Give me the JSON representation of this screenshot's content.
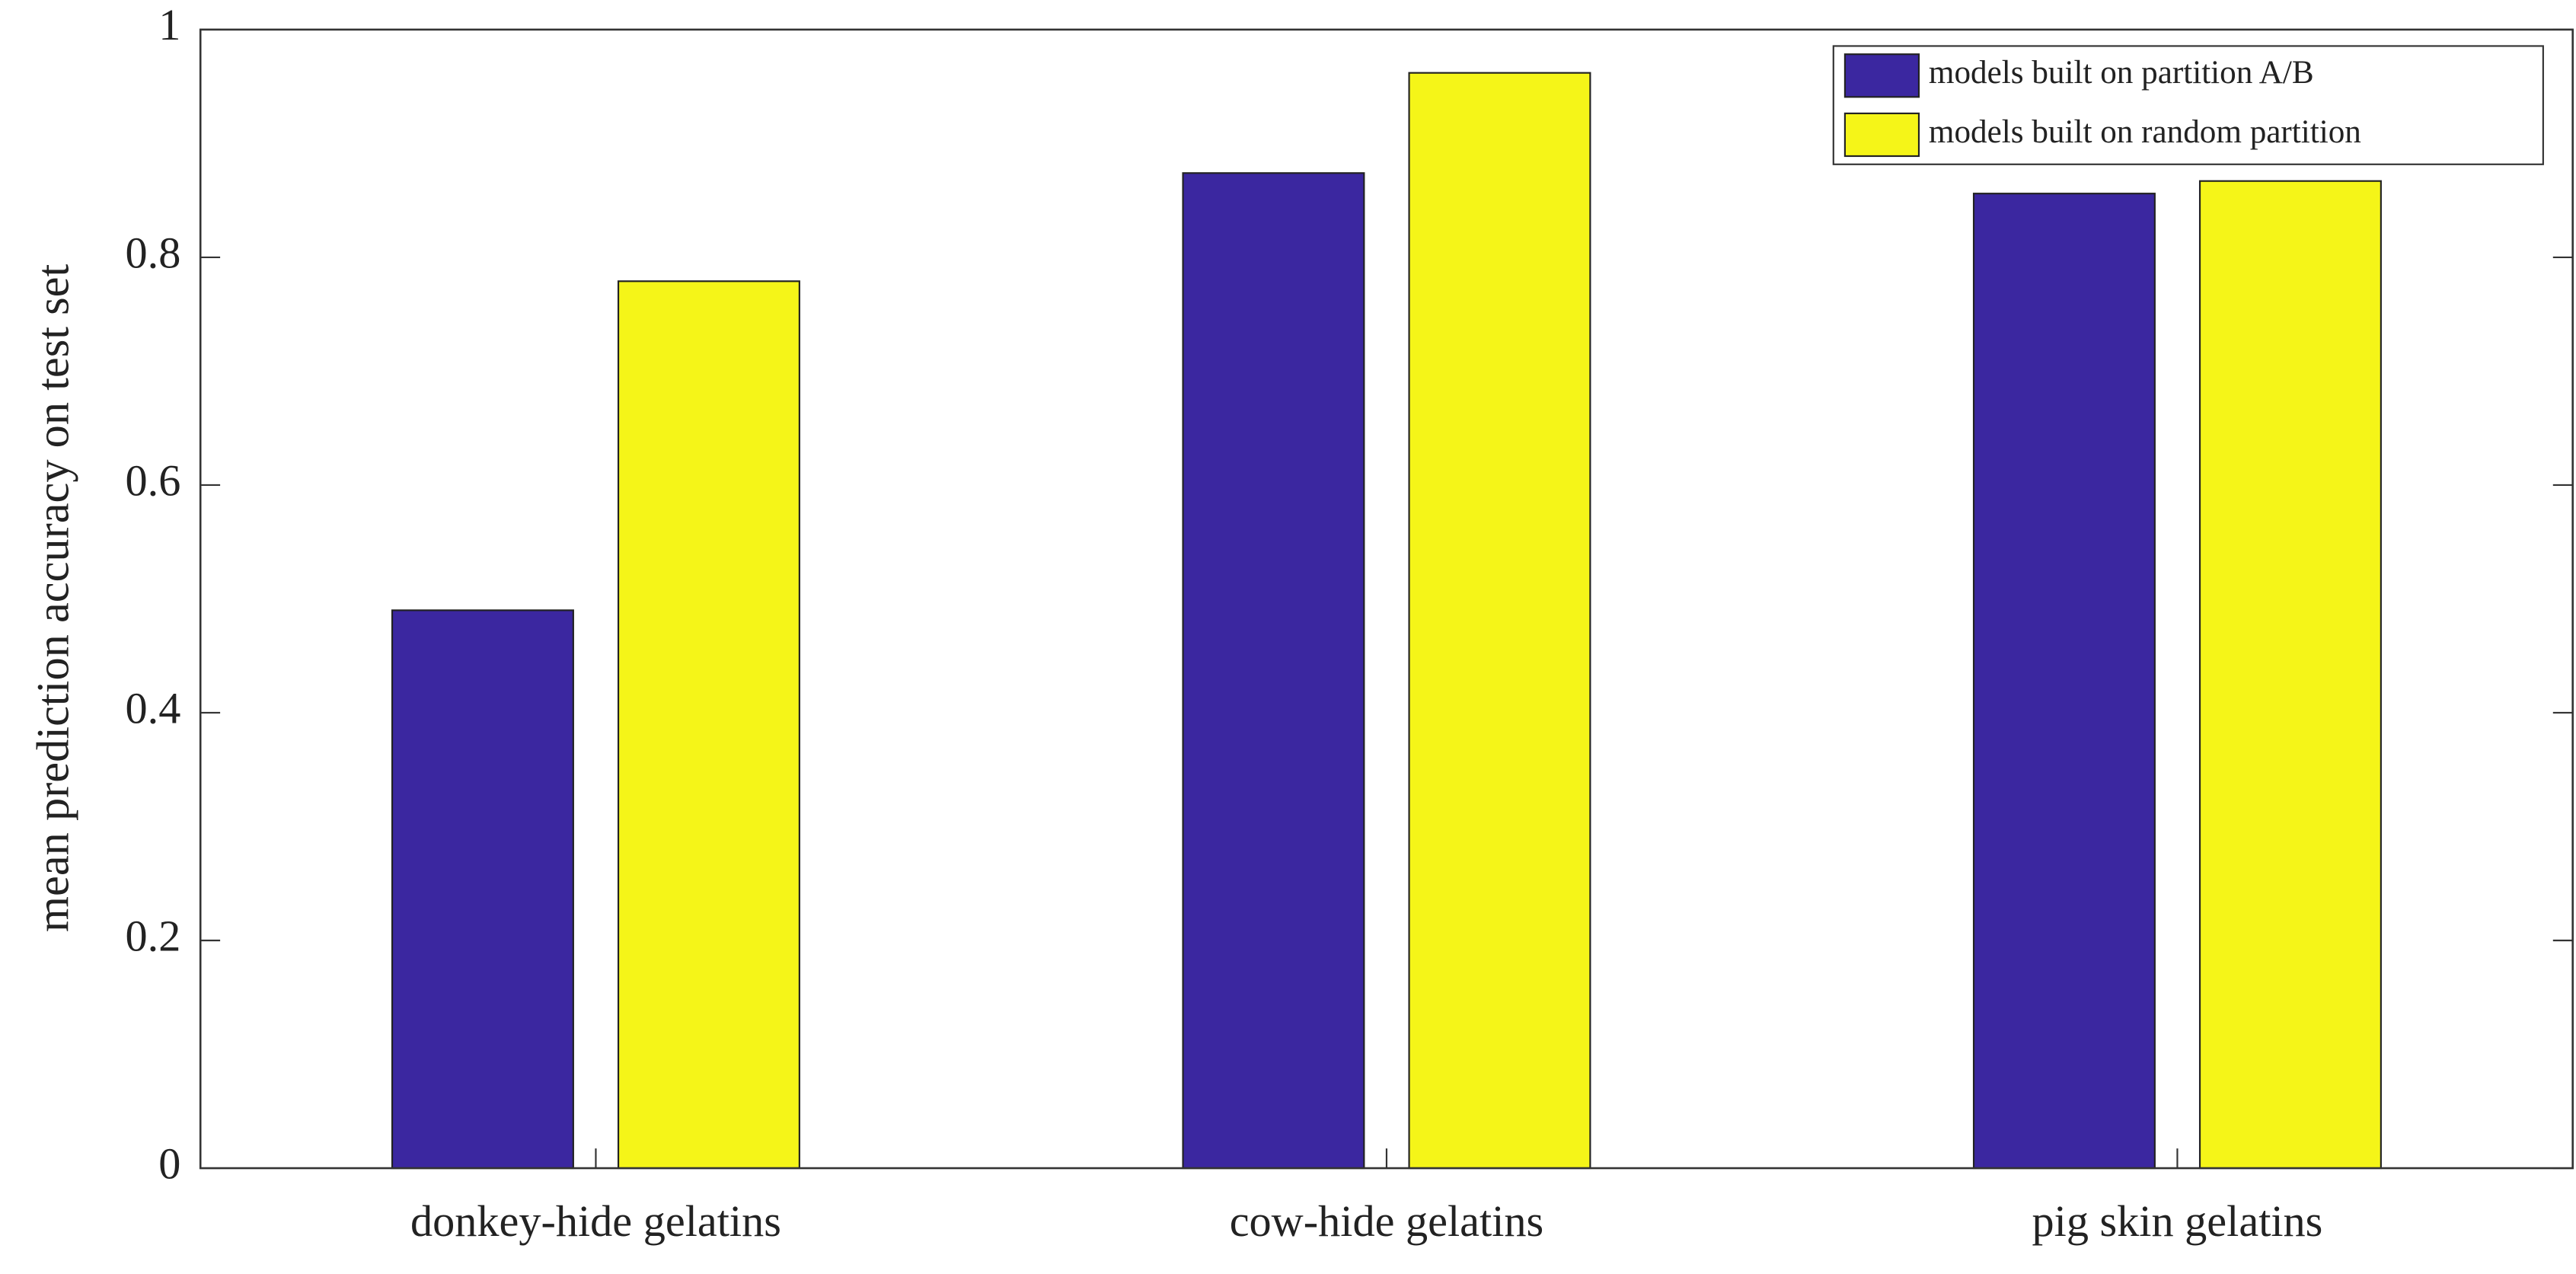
{
  "chart_data": {
    "type": "bar",
    "y_label": "mean prediction accuracy on test set",
    "categories": [
      "donkey-hide gelatins",
      "cow-hide gelatins",
      "pig skin gelatins"
    ],
    "series": [
      {
        "name": "models built on partition A/B",
        "color": "#3b27a0",
        "values": [
          0.49,
          0.874,
          0.856
        ]
      },
      {
        "name": "models built on random partition",
        "color": "#f5f518",
        "values": [
          0.779,
          0.962,
          0.867
        ]
      }
    ],
    "ylim": [
      0,
      1
    ],
    "yticks": [
      0,
      0.2,
      0.4,
      0.6,
      0.8,
      1
    ],
    "legend": "upper right"
  }
}
